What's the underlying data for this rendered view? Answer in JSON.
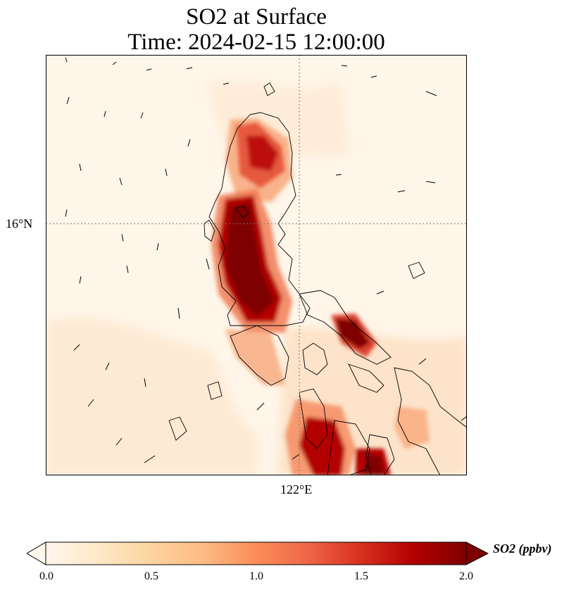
{
  "title": {
    "line1": "SO2 at Surface",
    "line2": "Time: 2024-02-15 12:00:00"
  },
  "axes": {
    "lat_tick": "16°N",
    "lon_tick": "122°E"
  },
  "colorbar": {
    "label": "SO2 (ppbv)",
    "ticks": [
      "0.0",
      "0.5",
      "1.0",
      "1.5",
      "2.0"
    ],
    "min": 0.0,
    "max": 2.0,
    "extend": "both",
    "colormap": "OrRd",
    "colors": [
      "#fff7ec",
      "#fee8c8",
      "#fdd49e",
      "#fdbb84",
      "#fc8d59",
      "#ef6548",
      "#d7301f",
      "#b30000",
      "#7f0000"
    ]
  },
  "map": {
    "region": "Luzon, Philippines",
    "gridlines": "dotted",
    "wind_vectors": true,
    "coastlines": true
  }
}
